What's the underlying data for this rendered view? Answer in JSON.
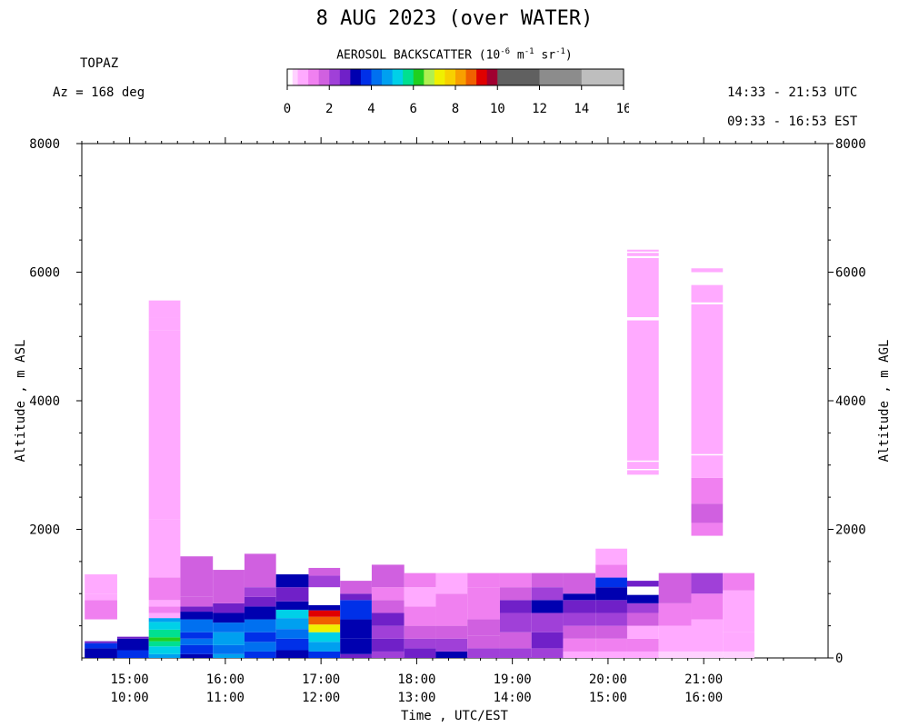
{
  "header": {
    "title": "8 AUG 2023 (over WATER)",
    "site": "TOPAZ",
    "azimuth": "Az = 168 deg",
    "utc_range": "14:33 - 21:53 UTC",
    "est_range": "09:33 - 16:53 EST"
  },
  "colorbar": {
    "title_main": "AEROSOL BACKSCATTER (10",
    "title_exp1": "-6",
    "title_m": " m",
    "title_exp2": "-1",
    "title_sr": " sr",
    "title_exp3": "-1",
    "title_close": ")",
    "ticks": [
      "0",
      "2",
      "4",
      "6",
      "8",
      "10",
      "12",
      "14",
      "16"
    ],
    "tick_values": [
      0,
      2,
      4,
      6,
      8,
      10,
      12,
      14,
      16
    ],
    "max": 16,
    "bins": [
      {
        "v0": 0.0,
        "v1": 0.25,
        "color": "#ffffff"
      },
      {
        "v0": 0.25,
        "v1": 0.5,
        "color": "#ffd2ff"
      },
      {
        "v0": 0.5,
        "v1": 1.0,
        "color": "#ffaaff"
      },
      {
        "v0": 1.0,
        "v1": 1.5,
        "color": "#f080f0"
      },
      {
        "v0": 1.5,
        "v1": 2.0,
        "color": "#d060e0"
      },
      {
        "v0": 2.0,
        "v1": 2.5,
        "color": "#a040d8"
      },
      {
        "v0": 2.5,
        "v1": 3.0,
        "color": "#7020c8"
      },
      {
        "v0": 3.0,
        "v1": 3.5,
        "color": "#0000b0"
      },
      {
        "v0": 3.5,
        "v1": 4.0,
        "color": "#0030e8"
      },
      {
        "v0": 4.0,
        "v1": 4.5,
        "color": "#0070f0"
      },
      {
        "v0": 4.5,
        "v1": 5.0,
        "color": "#00a0f0"
      },
      {
        "v0": 5.0,
        "v1": 5.5,
        "color": "#00d0e8"
      },
      {
        "v0": 5.5,
        "v1": 6.0,
        "color": "#00e090"
      },
      {
        "v0": 6.0,
        "v1": 6.5,
        "color": "#20d020"
      },
      {
        "v0": 6.5,
        "v1": 7.0,
        "color": "#b0f050"
      },
      {
        "v0": 7.0,
        "v1": 7.5,
        "color": "#f0f000"
      },
      {
        "v0": 7.5,
        "v1": 8.0,
        "color": "#f8d000"
      },
      {
        "v0": 8.0,
        "v1": 8.5,
        "color": "#f8a000"
      },
      {
        "v0": 8.5,
        "v1": 9.0,
        "color": "#f06000"
      },
      {
        "v0": 9.0,
        "v1": 9.5,
        "color": "#e00000"
      },
      {
        "v0": 9.5,
        "v1": 10.0,
        "color": "#a00030"
      },
      {
        "v0": 10.0,
        "v1": 12.0,
        "color": "#606060"
      },
      {
        "v0": 12.0,
        "v1": 14.0,
        "color": "#8c8c8c"
      },
      {
        "v0": 14.0,
        "v1": 16.0,
        "color": "#bebebe"
      }
    ]
  },
  "chart_data": {
    "type": "heatmap",
    "title": "8 AUG 2023 (over WATER)",
    "xlabel": "Time , UTC/EST",
    "ylabel_left": "Altitude , m ASL",
    "ylabel_right": "Altitude , m AGL",
    "x_ticks_utc": [
      "15:00",
      "16:00",
      "17:00",
      "18:00",
      "19:00",
      "20:00",
      "21:00"
    ],
    "x_ticks_est": [
      "10:00",
      "11:00",
      "12:00",
      "13:00",
      "14:00",
      "15:00",
      "16:00"
    ],
    "x_tick_hours": [
      15,
      16,
      17,
      18,
      19,
      20,
      21
    ],
    "xlim_hours": [
      14.5,
      22.3
    ],
    "y_ticks_left": [
      "8000",
      "6000",
      "4000",
      "2000"
    ],
    "y_tick_left_values": [
      8000,
      6000,
      4000,
      2000
    ],
    "y_ticks_right": [
      "8000",
      "6000",
      "4000",
      "2000",
      "0"
    ],
    "y_tick_right_values": [
      8000,
      6000,
      4000,
      2000,
      0
    ],
    "ylim": [
      0,
      8000
    ],
    "columns": [
      {
        "t0": 14.53,
        "t1": 14.87,
        "cells": [
          [
            0,
            150,
            "#0000b0"
          ],
          [
            150,
            230,
            "#0030e8"
          ],
          [
            230,
            260,
            "#7020c8"
          ],
          [
            600,
            900,
            "#f080f0"
          ],
          [
            900,
            1000,
            "#ffaaff"
          ],
          [
            1000,
            1300,
            "#ffaaff"
          ]
        ]
      },
      {
        "t0": 14.87,
        "t1": 15.2,
        "cells": [
          [
            0,
            120,
            "#0030e8"
          ],
          [
            120,
            300,
            "#0000b0"
          ],
          [
            300,
            330,
            "#7020c8"
          ]
        ]
      },
      {
        "t0": 15.2,
        "t1": 15.53,
        "cells": [
          [
            0,
            60,
            "#00a0f0"
          ],
          [
            60,
            180,
            "#00d0e8"
          ],
          [
            180,
            260,
            "#00e090"
          ],
          [
            260,
            320,
            "#20d020"
          ],
          [
            320,
            440,
            "#00e090"
          ],
          [
            440,
            560,
            "#00d0e8"
          ],
          [
            560,
            620,
            "#00a0f0"
          ],
          [
            620,
            700,
            "#ffaaff"
          ],
          [
            700,
            800,
            "#f080f0"
          ],
          [
            800,
            900,
            "#ffaaff"
          ],
          [
            900,
            1250,
            "#f080f0"
          ],
          [
            1250,
            2150,
            "#ffaaff"
          ],
          [
            2150,
            5100,
            "#ffaaff"
          ],
          [
            5100,
            5300,
            "#ffaaff"
          ],
          [
            5300,
            5560,
            "#ffaaff"
          ]
        ]
      },
      {
        "t0": 15.53,
        "t1": 15.87,
        "cells": [
          [
            0,
            60,
            "#0000b0"
          ],
          [
            60,
            200,
            "#0030e8"
          ],
          [
            200,
            300,
            "#0070f0"
          ],
          [
            300,
            400,
            "#0030e8"
          ],
          [
            400,
            600,
            "#0070f0"
          ],
          [
            600,
            720,
            "#0000b0"
          ],
          [
            720,
            800,
            "#7020c8"
          ],
          [
            800,
            950,
            "#d060e0"
          ],
          [
            950,
            1580,
            "#d060e0"
          ]
        ]
      },
      {
        "t0": 15.87,
        "t1": 16.2,
        "cells": [
          [
            0,
            60,
            "#00a0f0"
          ],
          [
            60,
            200,
            "#0070f0"
          ],
          [
            200,
            400,
            "#00a0f0"
          ],
          [
            400,
            550,
            "#0070f0"
          ],
          [
            550,
            700,
            "#0000b0"
          ],
          [
            700,
            850,
            "#7020c8"
          ],
          [
            850,
            1370,
            "#d060e0"
          ]
        ]
      },
      {
        "t0": 16.2,
        "t1": 16.53,
        "cells": [
          [
            0,
            100,
            "#0030e8"
          ],
          [
            100,
            250,
            "#0070f0"
          ],
          [
            250,
            400,
            "#0030e8"
          ],
          [
            400,
            600,
            "#0070f0"
          ],
          [
            600,
            800,
            "#0000b0"
          ],
          [
            800,
            950,
            "#7020c8"
          ],
          [
            950,
            1100,
            "#a040d8"
          ],
          [
            1100,
            1620,
            "#d060e0"
          ]
        ]
      },
      {
        "t0": 16.53,
        "t1": 16.87,
        "cells": [
          [
            0,
            120,
            "#0000b0"
          ],
          [
            120,
            300,
            "#0030e8"
          ],
          [
            300,
            450,
            "#0070f0"
          ],
          [
            450,
            620,
            "#00a0f0"
          ],
          [
            620,
            750,
            "#00d0e8"
          ],
          [
            750,
            880,
            "#0000b0"
          ],
          [
            880,
            1100,
            "#7020c8"
          ],
          [
            1100,
            1300,
            "#0000b0"
          ]
        ]
      },
      {
        "t0": 16.87,
        "t1": 17.2,
        "cells": [
          [
            0,
            100,
            "#0030e8"
          ],
          [
            100,
            250,
            "#00a0f0"
          ],
          [
            250,
            400,
            "#00d0e8"
          ],
          [
            400,
            520,
            "#f0f000"
          ],
          [
            520,
            640,
            "#f06000"
          ],
          [
            640,
            740,
            "#e00000"
          ],
          [
            740,
            820,
            "#0000b0"
          ],
          [
            1100,
            1280,
            "#a040d8"
          ],
          [
            1280,
            1400,
            "#d060e0"
          ]
        ]
      },
      {
        "t0": 17.2,
        "t1": 17.53,
        "cells": [
          [
            0,
            60,
            "#7020c8"
          ],
          [
            60,
            300,
            "#0000b0"
          ],
          [
            300,
            600,
            "#0000b0"
          ],
          [
            600,
            900,
            "#0030e8"
          ],
          [
            900,
            1000,
            "#7020c8"
          ],
          [
            1000,
            1200,
            "#d060e0"
          ]
        ]
      },
      {
        "t0": 17.53,
        "t1": 17.87,
        "cells": [
          [
            0,
            100,
            "#a040d8"
          ],
          [
            100,
            300,
            "#7020c8"
          ],
          [
            300,
            500,
            "#a040d8"
          ],
          [
            500,
            700,
            "#7020c8"
          ],
          [
            700,
            900,
            "#d060e0"
          ],
          [
            900,
            1100,
            "#f080f0"
          ],
          [
            1100,
            1450,
            "#d060e0"
          ]
        ]
      },
      {
        "t0": 17.87,
        "t1": 18.2,
        "cells": [
          [
            0,
            150,
            "#7020c8"
          ],
          [
            150,
            300,
            "#a040d8"
          ],
          [
            300,
            500,
            "#d060e0"
          ],
          [
            500,
            800,
            "#f080f0"
          ],
          [
            800,
            1100,
            "#ffaaff"
          ],
          [
            1100,
            1320,
            "#f080f0"
          ]
        ]
      },
      {
        "t0": 18.2,
        "t1": 18.53,
        "cells": [
          [
            0,
            100,
            "#0000b0"
          ],
          [
            100,
            300,
            "#a040d8"
          ],
          [
            300,
            500,
            "#d060e0"
          ],
          [
            500,
            1000,
            "#f080f0"
          ],
          [
            1000,
            1320,
            "#ffaaff"
          ]
        ]
      },
      {
        "t0": 18.53,
        "t1": 18.87,
        "cells": [
          [
            0,
            150,
            "#a040d8"
          ],
          [
            150,
            350,
            "#d060e0"
          ],
          [
            350,
            600,
            "#d060e0"
          ],
          [
            600,
            1100,
            "#f080f0"
          ],
          [
            1100,
            1320,
            "#f080f0"
          ]
        ]
      },
      {
        "t0": 18.87,
        "t1": 19.2,
        "cells": [
          [
            0,
            150,
            "#a040d8"
          ],
          [
            150,
            400,
            "#d060e0"
          ],
          [
            400,
            700,
            "#a040d8"
          ],
          [
            700,
            900,
            "#7020c8"
          ],
          [
            900,
            1100,
            "#d060e0"
          ],
          [
            1100,
            1320,
            "#f080f0"
          ]
        ]
      },
      {
        "t0": 19.2,
        "t1": 19.53,
        "cells": [
          [
            0,
            150,
            "#a040d8"
          ],
          [
            150,
            400,
            "#7020c8"
          ],
          [
            400,
            700,
            "#a040d8"
          ],
          [
            700,
            900,
            "#0000b0"
          ],
          [
            900,
            1100,
            "#a040d8"
          ],
          [
            1100,
            1320,
            "#d060e0"
          ]
        ]
      },
      {
        "t0": 19.53,
        "t1": 19.87,
        "cells": [
          [
            0,
            100,
            "#ffaaff"
          ],
          [
            100,
            300,
            "#f080f0"
          ],
          [
            300,
            500,
            "#d060e0"
          ],
          [
            500,
            700,
            "#a040d8"
          ],
          [
            700,
            900,
            "#7020c8"
          ],
          [
            900,
            1000,
            "#0000b0"
          ],
          [
            1000,
            1320,
            "#d060e0"
          ]
        ]
      },
      {
        "t0": 19.87,
        "t1": 20.2,
        "cells": [
          [
            0,
            100,
            "#ffaaff"
          ],
          [
            100,
            300,
            "#f080f0"
          ],
          [
            300,
            500,
            "#d060e0"
          ],
          [
            500,
            700,
            "#a040d8"
          ],
          [
            700,
            900,
            "#7020c8"
          ],
          [
            900,
            1100,
            "#0000b0"
          ],
          [
            1100,
            1250,
            "#0030e8"
          ],
          [
            1250,
            1450,
            "#f080f0"
          ],
          [
            1450,
            1700,
            "#ffaaff"
          ]
        ]
      },
      {
        "t0": 20.2,
        "t1": 20.53,
        "cells": [
          [
            0,
            100,
            "#ffaaff"
          ],
          [
            100,
            300,
            "#f080f0"
          ],
          [
            300,
            500,
            "#ffaaff"
          ],
          [
            500,
            700,
            "#d060e0"
          ],
          [
            700,
            850,
            "#a040d8"
          ],
          [
            850,
            980,
            "#0000b0"
          ],
          [
            1110,
            1200,
            "#7020c8"
          ],
          [
            2850,
            2920,
            "#ffaaff"
          ],
          [
            2940,
            3050,
            "#ffaaff"
          ],
          [
            3070,
            5250,
            "#ffaaff"
          ],
          [
            5300,
            6220,
            "#ffaaff"
          ],
          [
            6250,
            6300,
            "#ffaaff"
          ],
          [
            6320,
            6350,
            "#ffaaff"
          ]
        ]
      },
      {
        "t0": 20.53,
        "t1": 20.87,
        "cells": [
          [
            0,
            100,
            "#ffd2ff"
          ],
          [
            100,
            500,
            "#ffaaff"
          ],
          [
            500,
            850,
            "#f080f0"
          ],
          [
            850,
            1320,
            "#d060e0"
          ]
        ]
      },
      {
        "t0": 20.87,
        "t1": 21.2,
        "cells": [
          [
            0,
            100,
            "#ffd2ff"
          ],
          [
            100,
            600,
            "#ffaaff"
          ],
          [
            600,
            1000,
            "#f080f0"
          ],
          [
            1000,
            1320,
            "#a040d8"
          ],
          [
            1900,
            2100,
            "#f080f0"
          ],
          [
            2100,
            2400,
            "#d060e0"
          ],
          [
            2400,
            2800,
            "#f080f0"
          ],
          [
            2800,
            3150,
            "#ffaaff"
          ],
          [
            3170,
            5500,
            "#ffaaff"
          ],
          [
            5530,
            5800,
            "#ffaaff"
          ],
          [
            6000,
            6060,
            "#ffaaff"
          ]
        ]
      },
      {
        "t0": 21.2,
        "t1": 21.53,
        "cells": [
          [
            0,
            100,
            "#ffd2ff"
          ],
          [
            100,
            400,
            "#ffaaff"
          ],
          [
            400,
            1050,
            "#ffaaff"
          ],
          [
            1050,
            1320,
            "#f080f0"
          ]
        ]
      }
    ]
  }
}
